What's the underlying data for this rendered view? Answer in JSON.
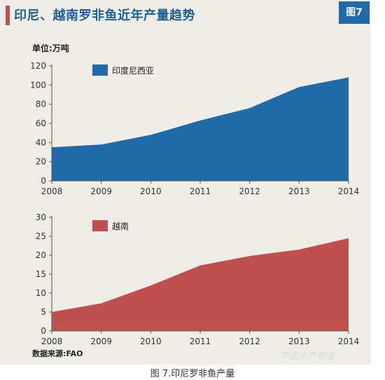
{
  "header": {
    "title": "印尼、越南罗非鱼近年产量趋势",
    "badge": "图7"
  },
  "unit_label": "单位:万吨",
  "source_label": "数据来源:FAO",
  "caption": "图 7.印尼罗非鱼产量",
  "watermark": "中国水产频道",
  "colors": {
    "card_bg": "#efede7",
    "indonesia": "#1f6ba8",
    "vietnam": "#c0504d",
    "title": "#1f5f93",
    "badge": "#1f6ba8"
  },
  "chart_data": [
    {
      "type": "area",
      "x": [
        "2008",
        "2009",
        "2010",
        "2011",
        "2012",
        "2013",
        "2014"
      ],
      "series": [
        {
          "name": "印度尼西亚",
          "values": [
            35,
            38,
            48,
            63,
            76,
            98,
            108
          ]
        }
      ],
      "yticks": [
        0,
        20,
        40,
        60,
        80,
        100,
        120
      ],
      "ylim": [
        0,
        120
      ],
      "legend_position": "top-left",
      "grid": false
    },
    {
      "type": "area",
      "x": [
        "2008",
        "2009",
        "2010",
        "2011",
        "2012",
        "2013",
        "2014"
      ],
      "series": [
        {
          "name": "越南",
          "values": [
            5,
            7.3,
            12,
            17.3,
            19.8,
            21.5,
            24.5
          ]
        }
      ],
      "yticks": [
        0,
        5,
        10,
        15,
        20,
        25,
        30
      ],
      "ylim": [
        0,
        30
      ],
      "legend_position": "top-left",
      "grid": false
    }
  ]
}
